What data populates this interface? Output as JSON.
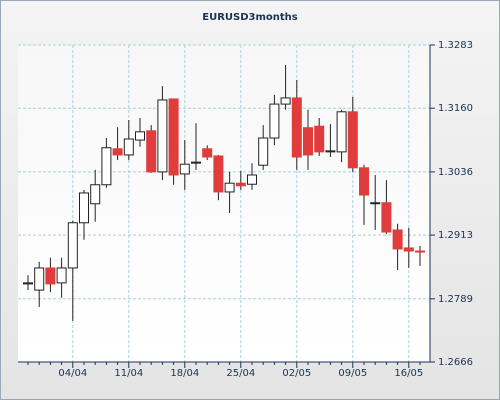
{
  "chart_data": {
    "type": "candlestick",
    "title": "EURUSD3months",
    "x": [
      null,
      null,
      null,
      null,
      "04/04",
      null,
      null,
      null,
      null,
      "11/04",
      null,
      null,
      null,
      null,
      "18/04",
      null,
      null,
      null,
      null,
      "25/04",
      null,
      null,
      null,
      null,
      "02/05",
      null,
      null,
      null,
      null,
      "09/05",
      null,
      null,
      null,
      null,
      "16/05",
      null
    ],
    "series": [
      {
        "open": [
          1.2818,
          1.2806,
          1.2849,
          1.282,
          1.2849,
          1.2937,
          1.2974,
          1.3011,
          1.3081,
          1.3069,
          1.3098,
          1.3116,
          1.3036,
          1.3178,
          1.3032,
          1.3053,
          1.3081,
          1.3067,
          1.2997,
          1.3014,
          1.3012,
          1.3049,
          1.3102,
          1.3168,
          1.318,
          1.3122,
          1.3125,
          1.3075,
          1.3075,
          1.3153,
          1.3044,
          1.2975,
          1.2976,
          1.2923,
          1.2888,
          1.2882
        ],
        "high": [
          1.2835,
          1.2861,
          1.2869,
          1.2869,
          1.2941,
          1.3001,
          1.304,
          1.3102,
          1.3123,
          1.3137,
          1.3141,
          1.3127,
          1.3203,
          1.3178,
          1.3098,
          1.3131,
          1.3088,
          1.3069,
          1.3036,
          1.3038,
          1.3053,
          1.3127,
          1.3186,
          1.3244,
          1.3215,
          1.3157,
          1.3141,
          1.3129,
          1.3157,
          1.3182,
          1.305,
          1.303,
          1.302,
          1.2935,
          1.2927,
          1.2892
        ],
        "low": [
          1.2806,
          1.2773,
          1.2802,
          1.2791,
          1.2746,
          1.2904,
          1.2939,
          1.3005,
          1.3059,
          1.3059,
          1.3085,
          1.3034,
          1.302,
          1.3011,
          1.3001,
          1.304,
          1.3059,
          1.2981,
          1.2956,
          1.3001,
          1.3001,
          1.304,
          1.3088,
          1.3157,
          1.304,
          1.304,
          1.3067,
          1.3065,
          1.3055,
          1.3036,
          1.2933,
          1.2923,
          1.2915,
          1.2845,
          1.2849,
          1.2853
        ],
        "close": [
          1.282,
          1.2849,
          1.2818,
          1.2849,
          1.2937,
          1.2995,
          1.3011,
          1.3083,
          1.3069,
          1.31,
          1.3114,
          1.3036,
          1.3176,
          1.303,
          1.3051,
          1.3055,
          1.3065,
          1.2997,
          1.3014,
          1.3009,
          1.303,
          1.3102,
          1.3168,
          1.318,
          1.3065,
          1.3069,
          1.3075,
          1.3077,
          1.3153,
          1.3044,
          1.2991,
          1.2976,
          1.2919,
          1.2886,
          1.2882,
          1.288
        ],
        "up_color": "#ffffff",
        "down_color": "#e03c3c"
      }
    ],
    "ylim": [
      1.2666,
      1.3283
    ],
    "yticks": [
      1.3283,
      {
        "value": 1.316,
        "label": "1.3160"
      },
      1.3036,
      1.2913,
      1.2789,
      1.2666
    ],
    "grid": true
  }
}
